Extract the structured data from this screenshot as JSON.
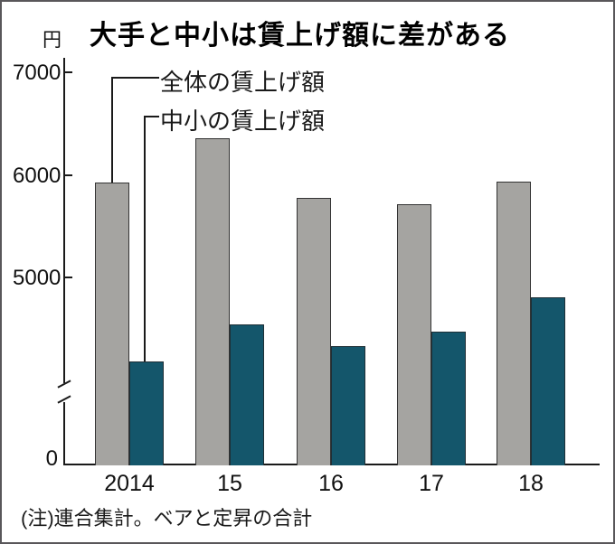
{
  "header": {
    "unit_label": "円",
    "title": "大手と中小は賃上げ額に差がある"
  },
  "note_text": "(注)連合集計。ベアと定昇の合計",
  "chart_data": {
    "type": "bar",
    "title": "大手と中小は賃上げ額に差がある",
    "unit": "円",
    "categories": [
      "2014",
      "15",
      "16",
      "17",
      "18"
    ],
    "series": [
      {
        "name": "全体の賃上げ額",
        "color": "#a5a4a1",
        "border_color": "#333333",
        "values": [
          5928,
          6354,
          5779,
          5712,
          5934
        ]
      },
      {
        "name": "中小の賃上げ額",
        "color": "#14566b",
        "border_color": "#1f2f36",
        "values": [
          4180,
          4545,
          4330,
          4475,
          4804
        ]
      }
    ],
    "y_axis": {
      "ticks": [
        7000,
        6000,
        5000
      ],
      "zero_label": "0",
      "axis_break": true,
      "break_gap_values": [
        0,
        3700
      ]
    },
    "legend_position": "top-left-callout",
    "grid": false,
    "note": "(注)連合集計。ベアと定昇の合計"
  }
}
